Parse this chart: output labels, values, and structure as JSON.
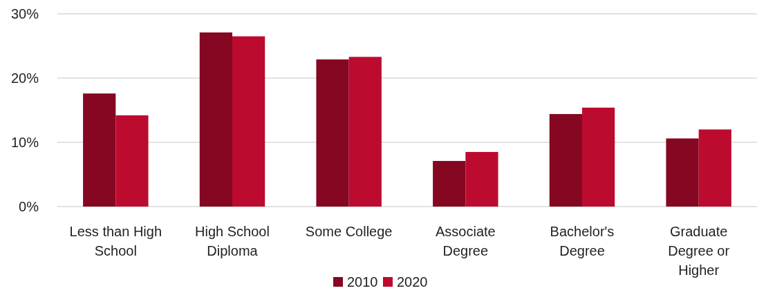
{
  "chart_data": {
    "type": "bar",
    "categories": [
      "Less than High School",
      "High School Diploma",
      "Some College",
      "Associate Degree",
      "Bachelor's Degree",
      "Graduate Degree or Higher"
    ],
    "series": [
      {
        "name": "2010",
        "color": "#850721",
        "values": [
          17.6,
          27.1,
          22.9,
          7.1,
          14.4,
          10.6
        ]
      },
      {
        "name": "2020",
        "color": "#bc0b2f",
        "values": [
          14.2,
          26.5,
          23.3,
          8.5,
          15.4,
          12.0
        ]
      }
    ],
    "ylim": [
      0,
      30
    ],
    "yticks": [
      {
        "value": 0,
        "label": "0%"
      },
      {
        "value": 10,
        "label": "10%"
      },
      {
        "value": 20,
        "label": "20%"
      },
      {
        "value": 30,
        "label": "30%"
      }
    ],
    "grid": "y",
    "legend": "bottom"
  }
}
